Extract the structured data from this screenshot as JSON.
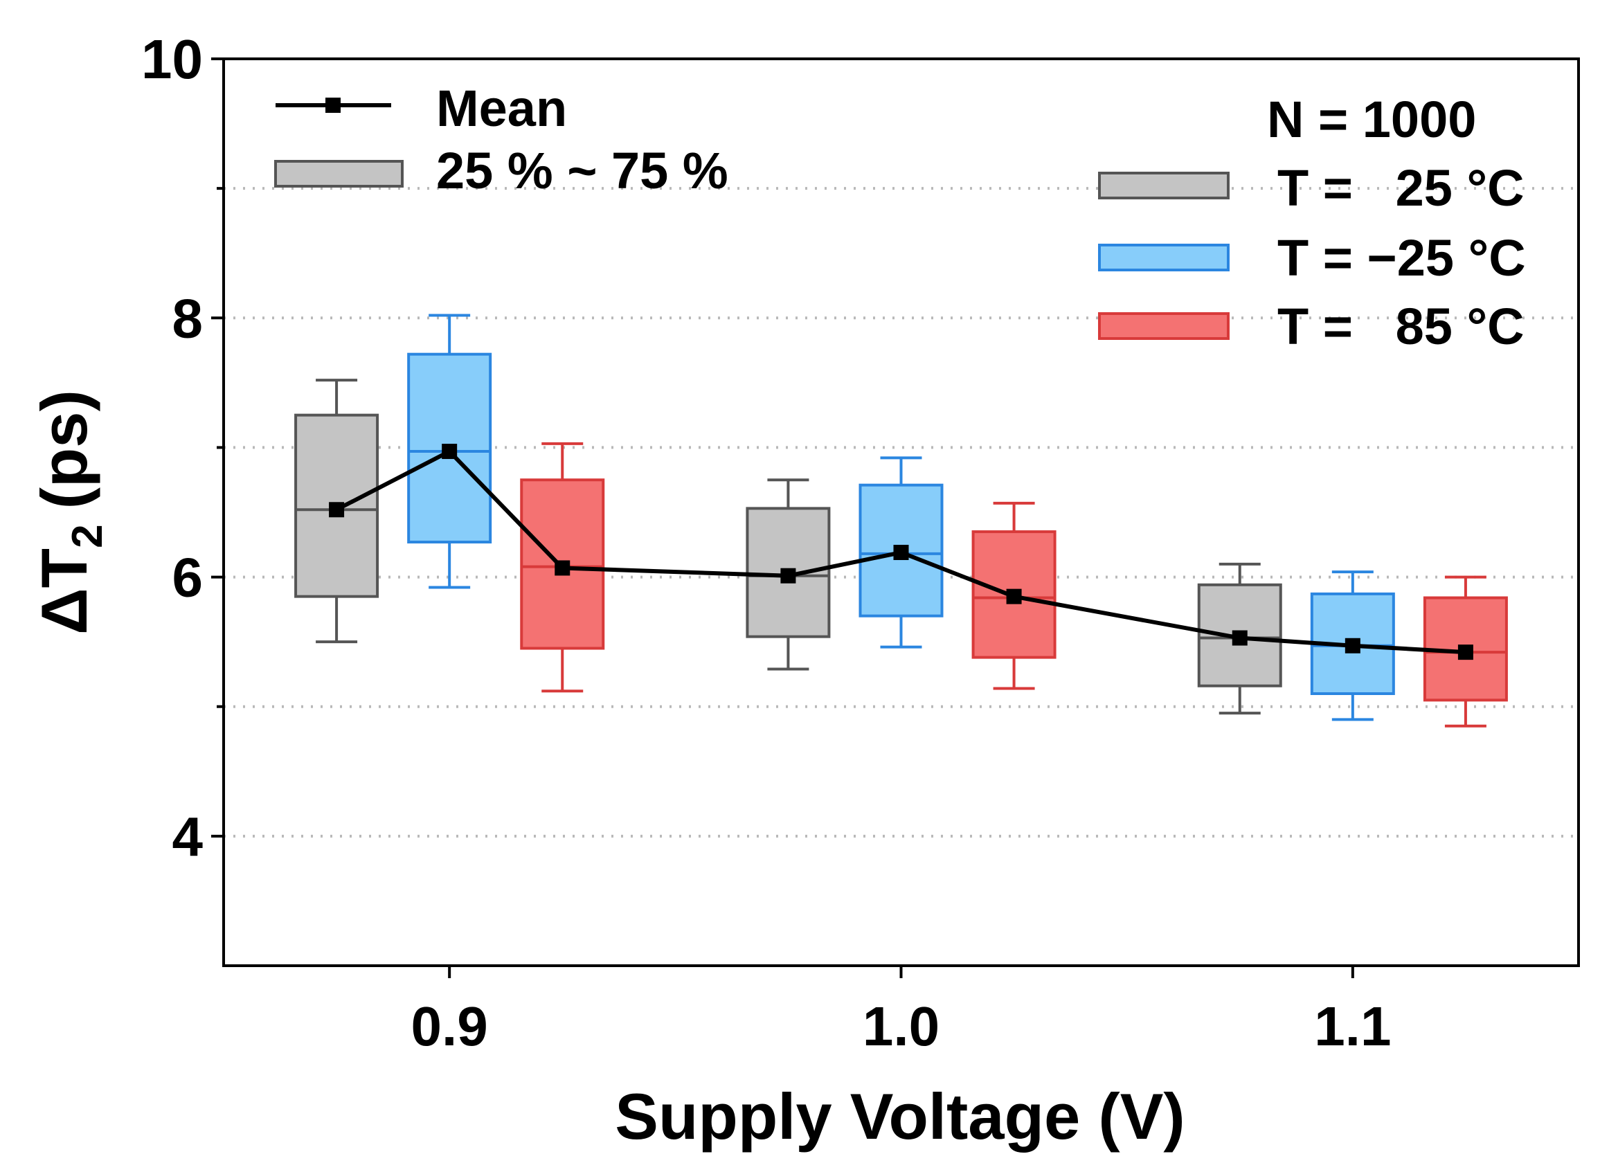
{
  "chart_data": {
    "type": "box",
    "xlabel": "Supply Voltage (V)",
    "ylabel": "ΔT",
    "ylabel_subscript": "2",
    "ylabel_unit": "(ps)",
    "ylim": [
      3,
      10
    ],
    "xlim": [
      0.85,
      1.15
    ],
    "yticks": [
      4,
      6,
      8,
      10
    ],
    "yticks_labels": [
      "4",
      "6",
      "8",
      "10"
    ],
    "minor_gridlines": [
      5,
      7,
      9
    ],
    "xticks": [
      0.9,
      1.0,
      1.1
    ],
    "xticks_labels": [
      "0.9",
      "1.0",
      "1.1"
    ],
    "grid": "horizontal dotted",
    "annotation": "N = 1000",
    "legend": {
      "mean_label": "Mean",
      "box_label": "25 % ~ 75 %",
      "series_labels": [
        "T =   25 °C",
        "T = −25 °C",
        "T =   85 °C"
      ]
    },
    "colors": {
      "25": {
        "fill": "#c4c4c4",
        "stroke": "#555555"
      },
      "-25": {
        "fill": "#87cdfa",
        "stroke": "#2b86e0"
      },
      "85": {
        "fill": "#f47272",
        "stroke": "#d83a3a"
      },
      "mean": "#000000"
    },
    "boxes": [
      {
        "voltage": 0.9,
        "temperature": "25",
        "x": 0.875,
        "whisker_low": 5.5,
        "q1": 5.85,
        "median": 6.52,
        "q3": 7.25,
        "whisker_high": 7.52,
        "mean": 6.52
      },
      {
        "voltage": 0.9,
        "temperature": "-25",
        "x": 0.9,
        "whisker_low": 5.92,
        "q1": 6.27,
        "median": 6.97,
        "q3": 7.72,
        "whisker_high": 8.02,
        "mean": 6.97
      },
      {
        "voltage": 0.9,
        "temperature": "85",
        "x": 0.925,
        "whisker_low": 5.12,
        "q1": 5.45,
        "median": 6.08,
        "q3": 6.75,
        "whisker_high": 7.03,
        "mean": 6.07
      },
      {
        "voltage": 1.0,
        "temperature": "25",
        "x": 0.975,
        "whisker_low": 5.29,
        "q1": 5.54,
        "median": 6.01,
        "q3": 6.53,
        "whisker_high": 6.75,
        "mean": 6.01
      },
      {
        "voltage": 1.0,
        "temperature": "-25",
        "x": 1.0,
        "whisker_low": 5.46,
        "q1": 5.7,
        "median": 6.18,
        "q3": 6.71,
        "whisker_high": 6.92,
        "mean": 6.19
      },
      {
        "voltage": 1.0,
        "temperature": "85",
        "x": 1.025,
        "whisker_low": 5.14,
        "q1": 5.38,
        "median": 5.84,
        "q3": 6.35,
        "whisker_high": 6.57,
        "mean": 5.85
      },
      {
        "voltage": 1.1,
        "temperature": "25",
        "x": 1.075,
        "whisker_low": 4.95,
        "q1": 5.16,
        "median": 5.53,
        "q3": 5.94,
        "whisker_high": 6.1,
        "mean": 5.53
      },
      {
        "voltage": 1.1,
        "temperature": "-25",
        "x": 1.1,
        "whisker_low": 4.9,
        "q1": 5.1,
        "median": 5.47,
        "q3": 5.87,
        "whisker_high": 6.04,
        "mean": 5.47
      },
      {
        "voltage": 1.1,
        "temperature": "85",
        "x": 1.125,
        "whisker_low": 4.85,
        "q1": 5.05,
        "median": 5.42,
        "q3": 5.84,
        "whisker_high": 6.0,
        "mean": 5.42
      }
    ]
  }
}
